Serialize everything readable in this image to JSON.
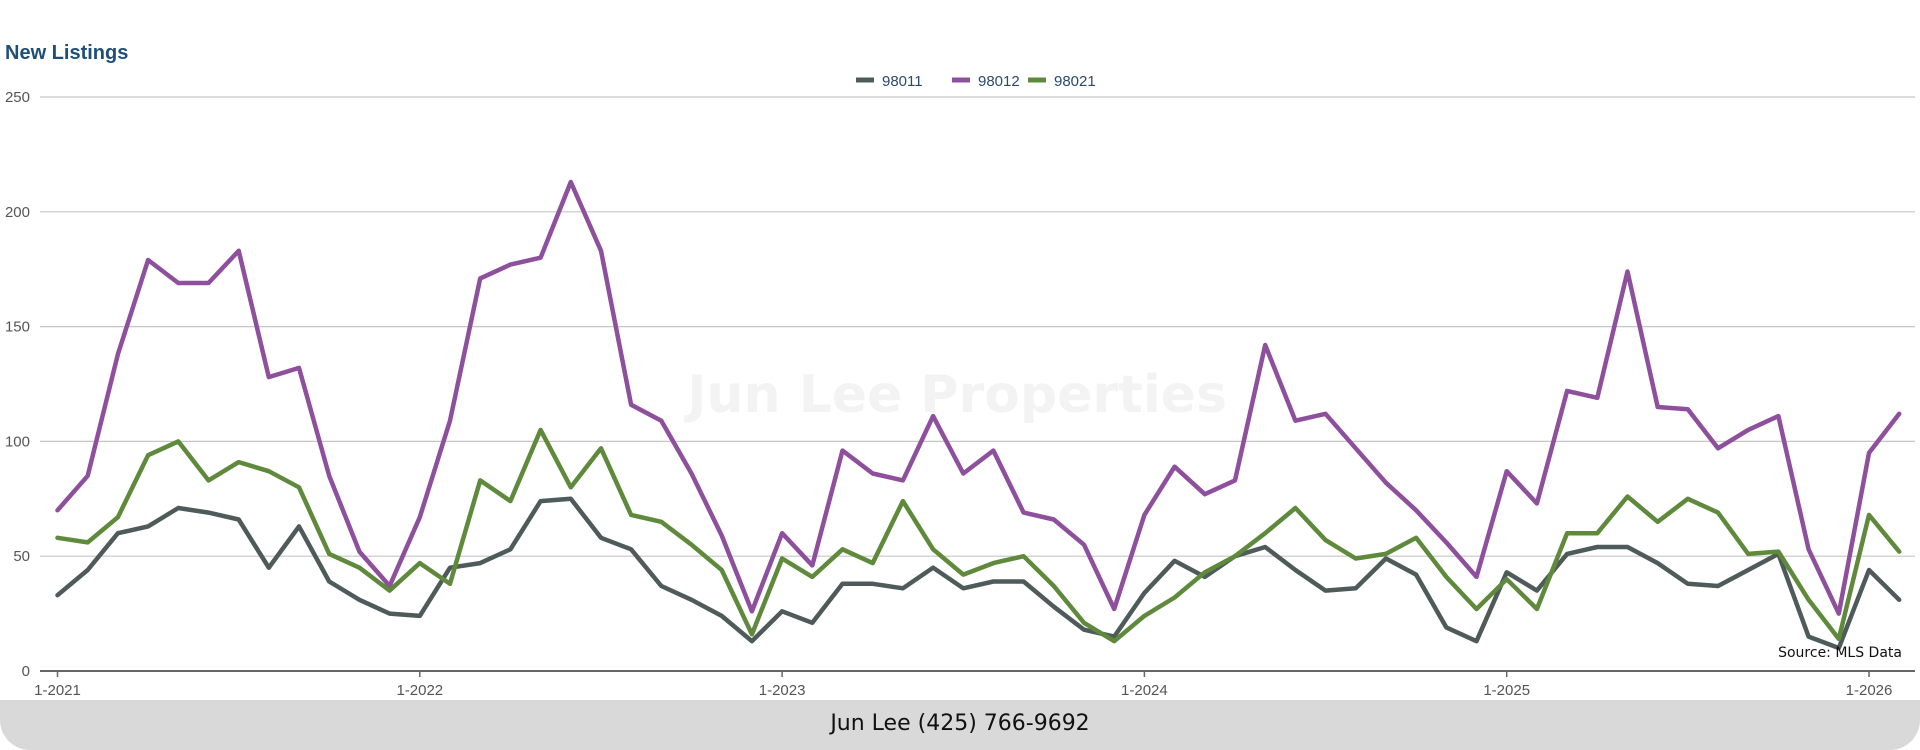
{
  "chart_data": {
    "type": "line",
    "title": "New Listings",
    "xlabel": "",
    "ylabel": "",
    "ylim": [
      0,
      250
    ],
    "yticks": [
      "0",
      "50",
      "100",
      "150",
      "200",
      "250"
    ],
    "xticks": [
      "1-2021",
      "1-2022",
      "1-2023",
      "1-2024",
      "1-2025",
      "1-2026"
    ],
    "x_start": "1-2021",
    "x_count_months": 62,
    "grid": true,
    "legend_position": "top-center",
    "annotation": "Source: MLS Data",
    "watermark": "Jun Lee Properties",
    "series": [
      {
        "name": "98011",
        "color": "#4f5a5a",
        "values": [
          33,
          44,
          60,
          63,
          71,
          69,
          66,
          45,
          63,
          39,
          31,
          25,
          24,
          45,
          47,
          53,
          74,
          75,
          58,
          53,
          37,
          31,
          24,
          13,
          26,
          21,
          38,
          38,
          36,
          45,
          36,
          39,
          39,
          28,
          18,
          15,
          34,
          48,
          41,
          50,
          54,
          44,
          35,
          36,
          49,
          42,
          19,
          13,
          43,
          35,
          51,
          54,
          54,
          47,
          38,
          37,
          44,
          51,
          15,
          10,
          44,
          31
        ]
      },
      {
        "name": "98012",
        "color": "#8e4f9d",
        "values": [
          70,
          85,
          138,
          179,
          169,
          169,
          183,
          128,
          132,
          85,
          52,
          37,
          67,
          109,
          171,
          177,
          180,
          213,
          183,
          116,
          109,
          86,
          59,
          26,
          60,
          46,
          96,
          86,
          83,
          111,
          86,
          96,
          69,
          66,
          55,
          27,
          68,
          89,
          77,
          83,
          142,
          109,
          112,
          97,
          82,
          70,
          56,
          41,
          87,
          73,
          122,
          119,
          174,
          115,
          114,
          97,
          105,
          111,
          53,
          25,
          95,
          112
        ]
      },
      {
        "name": "98021",
        "color": "#5f8a3c",
        "values": [
          58,
          56,
          67,
          94,
          100,
          83,
          91,
          87,
          80,
          51,
          45,
          35,
          47,
          38,
          83,
          74,
          105,
          80,
          97,
          68,
          65,
          55,
          44,
          16,
          49,
          41,
          53,
          47,
          74,
          53,
          42,
          47,
          50,
          37,
          21,
          13,
          24,
          32,
          43,
          50,
          60,
          71,
          57,
          49,
          51,
          58,
          41,
          27,
          40,
          27,
          60,
          60,
          76,
          65,
          75,
          69,
          51,
          52,
          31,
          14,
          68,
          52
        ]
      }
    ]
  },
  "footer": {
    "contact": "Jun Lee (425) 766-9692"
  }
}
